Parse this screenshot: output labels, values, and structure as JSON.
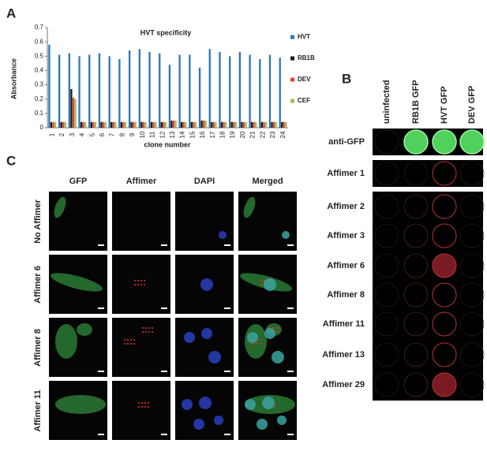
{
  "panel_labels": [
    "A",
    "B",
    "C"
  ],
  "chart_data": {
    "type": "bar",
    "title": "HVT specificity",
    "y_label": "Absorbance",
    "x_label": "clone number",
    "categories": [
      "1",
      "2",
      "3",
      "4",
      "5",
      "6",
      "7",
      "8",
      "9",
      "10",
      "11",
      "12",
      "13",
      "14",
      "15",
      "16",
      "17",
      "18",
      "19",
      "20",
      "21",
      "22",
      "23",
      "24"
    ],
    "series": [
      {
        "name": "HVT",
        "color": "#2e75b6",
        "values": [
          0.58,
          0.51,
          0.52,
          0.5,
          0.51,
          0.52,
          0.5,
          0.48,
          0.54,
          0.55,
          0.53,
          0.52,
          0.44,
          0.51,
          0.51,
          0.42,
          0.55,
          0.53,
          0.5,
          0.53,
          0.51,
          0.48,
          0.51,
          0.49
        ]
      },
      {
        "name": "RB1B",
        "color": "#1a1a1a",
        "values": [
          0.04,
          0.04,
          0.27,
          0.04,
          0.04,
          0.04,
          0.04,
          0.04,
          0.04,
          0.04,
          0.04,
          0.04,
          0.05,
          0.04,
          0.04,
          0.05,
          0.04,
          0.04,
          0.04,
          0.04,
          0.04,
          0.04,
          0.04,
          0.04
        ]
      },
      {
        "name": "DEV",
        "color": "#e8432a",
        "values": [
          0.04,
          0.04,
          0.21,
          0.04,
          0.04,
          0.04,
          0.04,
          0.04,
          0.04,
          0.04,
          0.04,
          0.04,
          0.05,
          0.04,
          0.04,
          0.05,
          0.04,
          0.04,
          0.04,
          0.04,
          0.04,
          0.04,
          0.04,
          0.04
        ]
      },
      {
        "name": "CEF",
        "color": "#9bbb59",
        "values": [
          0.04,
          0.04,
          0.2,
          0.04,
          0.04,
          0.04,
          0.04,
          0.04,
          0.04,
          0.04,
          0.04,
          0.04,
          0.05,
          0.04,
          0.04,
          0.05,
          0.04,
          0.04,
          0.04,
          0.04,
          0.04,
          0.04,
          0.04,
          0.04
        ]
      }
    ],
    "ylim": [
      0,
      0.7
    ],
    "yticks": [
      0,
      0.1,
      0.2,
      0.3,
      0.4,
      0.5,
      0.6,
      0.7
    ],
    "legend": "right"
  },
  "panel_b": {
    "columns": [
      "uninfected",
      "RB1B GFP",
      "HVT GFP",
      "DEV GFP"
    ],
    "rows": [
      "anti-GFP",
      "Affimer 1",
      "Affimer 2",
      "Affimer 3",
      "Affimer 6",
      "Affimer 8",
      "Affimer 11",
      "Affimer 13",
      "Affimer 29"
    ]
  },
  "panel_c": {
    "columns": [
      "GFP",
      "Affimer",
      "DAPI",
      "Merged"
    ],
    "rows": [
      "No Affimer",
      "Affimer 6",
      "Affimer 8",
      "Affimer 11"
    ]
  }
}
